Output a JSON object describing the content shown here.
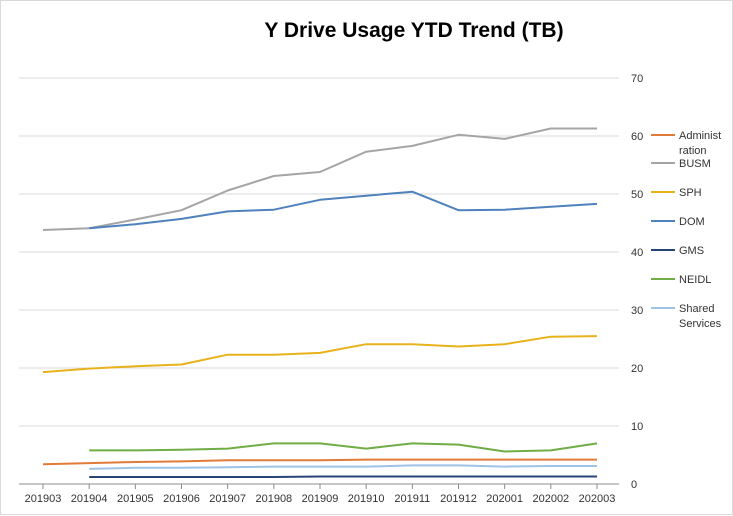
{
  "chart_data": {
    "type": "line",
    "title": "Y Drive Usage YTD Trend (TB)",
    "xlabel": "",
    "ylabel": "",
    "categories": [
      "201903",
      "201904",
      "201905",
      "201906",
      "201907",
      "201908",
      "201909",
      "201910",
      "201911",
      "201912",
      "202001",
      "202002",
      "202003"
    ],
    "ylim": [
      0,
      70
    ],
    "yticks": [
      0,
      10,
      20,
      30,
      40,
      50,
      60,
      70
    ],
    "y_axis_side": "right",
    "grid": true,
    "legend_position": "right",
    "series": [
      {
        "name": "Administ ration",
        "color": "#E07B39",
        "values": [
          3.4,
          3.6,
          3.8,
          3.9,
          4.1,
          4.1,
          4.1,
          4.2,
          4.2,
          4.2,
          4.2,
          4.2,
          4.2
        ]
      },
      {
        "name": "BUSM",
        "color": "#A5A5A5",
        "values": [
          43.8,
          44.1,
          45.6,
          47.2,
          50.6,
          53.1,
          53.8,
          57.3,
          58.3,
          60.2,
          59.5,
          61.3,
          61.3
        ]
      },
      {
        "name": "SPH",
        "color": "#E8B21A",
        "values": [
          19.3,
          19.9,
          20.3,
          20.6,
          22.3,
          22.3,
          22.6,
          24.1,
          24.1,
          23.7,
          24.1,
          25.4,
          25.5
        ]
      },
      {
        "name": "DOM",
        "color": "#4F81BD",
        "values": [
          null,
          44.1,
          44.8,
          45.7,
          47.0,
          47.3,
          49.0,
          49.7,
          50.4,
          47.2,
          47.3,
          47.8,
          48.3
        ]
      },
      {
        "name": "GMS",
        "color": "#264478",
        "values": [
          null,
          1.2,
          1.2,
          1.2,
          1.2,
          1.2,
          1.3,
          1.3,
          1.3,
          1.3,
          1.3,
          1.3,
          1.3
        ]
      },
      {
        "name": "NEIDL",
        "color": "#70AD47",
        "values": [
          null,
          5.8,
          5.8,
          5.9,
          6.1,
          7.0,
          7.0,
          6.1,
          7.0,
          6.8,
          5.6,
          5.8,
          7.0
        ]
      },
      {
        "name": "Shared Services",
        "color": "#9DC3E6",
        "values": [
          null,
          2.6,
          2.8,
          2.8,
          2.9,
          3.0,
          3.0,
          3.0,
          3.2,
          3.2,
          3.0,
          3.1,
          3.1
        ]
      }
    ]
  }
}
